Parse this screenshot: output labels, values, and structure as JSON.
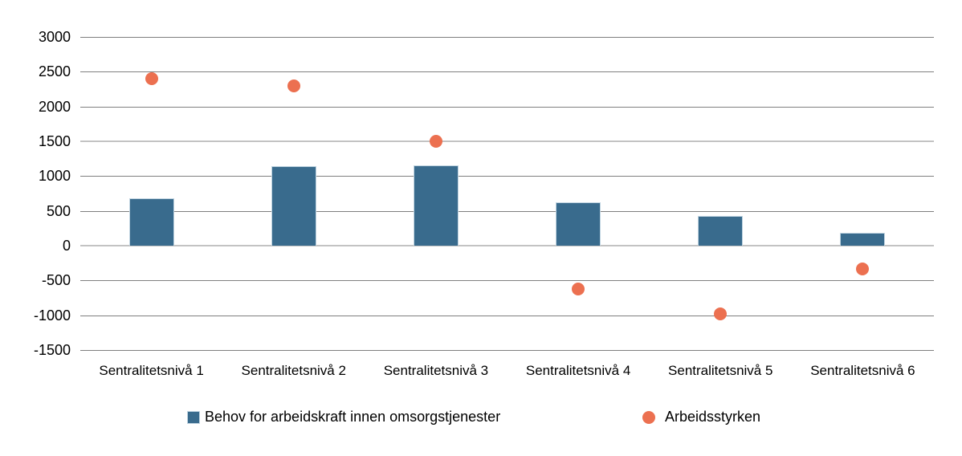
{
  "chart_data": {
    "type": "bar",
    "categories": [
      "Sentralitetsnivå 1",
      "Sentralitetsnivå 2",
      "Sentralitetsnivå 3",
      "Sentralitetsnivå 4",
      "Sentralitetsnivå 5",
      "Sentralitetsnivå 6"
    ],
    "series": [
      {
        "name": "Behov for arbeidskraft innen omsorgstjenester",
        "type": "bar",
        "color": "#396b8d",
        "values": [
          680,
          1140,
          1150,
          620,
          430,
          190
        ]
      },
      {
        "name": "Arbeidsstyrken",
        "type": "scatter",
        "color": "#ec7050",
        "values": [
          2400,
          2300,
          1500,
          -620,
          -980,
          -340
        ]
      }
    ],
    "title": "",
    "xlabel": "",
    "ylabel": "",
    "ylim": [
      -1500,
      3000
    ],
    "yticks": [
      3000,
      2500,
      2000,
      1500,
      1000,
      500,
      0,
      -500,
      -1000,
      -1500
    ],
    "emphasized_gridlines": [
      1500,
      0
    ],
    "grid": "horizontal",
    "legend_position": "bottom"
  },
  "colors": {
    "bar_fill": "#396b8d",
    "bar_border": "#bfd3e0",
    "dot_fill": "#ec7050",
    "gridline_minor": "#7f7f7f",
    "gridline_emphasized": "#c3c3c3",
    "background": "#ffffff",
    "text": "#000000"
  }
}
